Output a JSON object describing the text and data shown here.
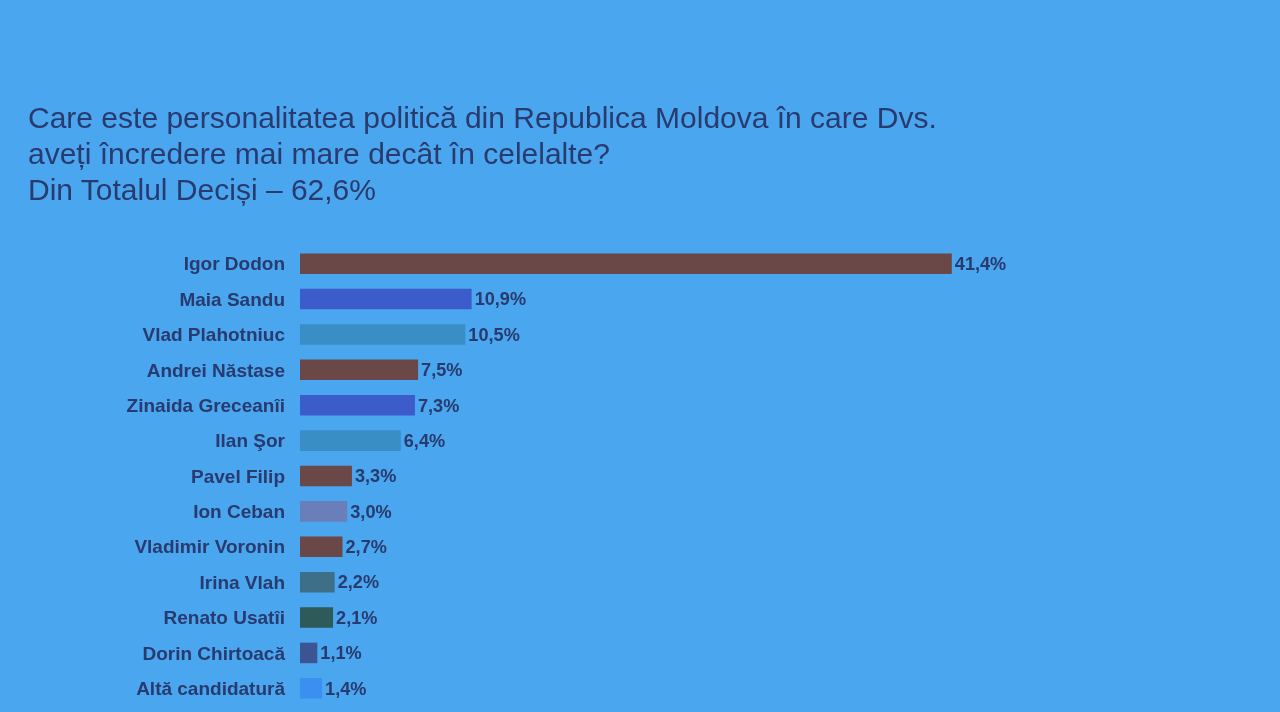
{
  "chart_data": {
    "type": "bar",
    "orientation": "horizontal",
    "title": "Care este personalitatea politică din Republica Moldova în care Dvs. aveți încredere mai mare decât în celelalte?",
    "subtitle": "Din Totalul Deciși – 62,6%",
    "categories": [
      "Igor Dodon",
      "Maia Sandu",
      "Vlad Plahotniuc",
      "Andrei Năstase",
      "Zinaida Greceanîi",
      "Ilan Şor",
      "Pavel Filip",
      "Ion Ceban",
      "Vladimir Voronin",
      "Irina Vlah",
      "Renato Usatîi",
      "Dorin Chirtoacă",
      "Altă candidatură"
    ],
    "values": [
      41.4,
      10.9,
      10.5,
      7.5,
      7.3,
      6.4,
      3.3,
      3.0,
      2.7,
      2.2,
      2.1,
      1.1,
      1.4
    ],
    "value_labels": [
      "41,4%",
      "10,9%",
      "10,5%",
      "7,5%",
      "7,3%",
      "6,4%",
      "3,3%",
      "3,0%",
      "2,7%",
      "2,2%",
      "2,1%",
      "1,1%",
      "1,4%"
    ],
    "colors": [
      "#6a4848",
      "#3c5ccc",
      "#3a8ec6",
      "#6a4848",
      "#3c5ccc",
      "#3a8ec6",
      "#6a4848",
      "#6a7fba",
      "#6a4848",
      "#3d7088",
      "#2f5a5a",
      "#3c5592",
      "#3b8ff0"
    ],
    "tick_labels": "y"
  }
}
